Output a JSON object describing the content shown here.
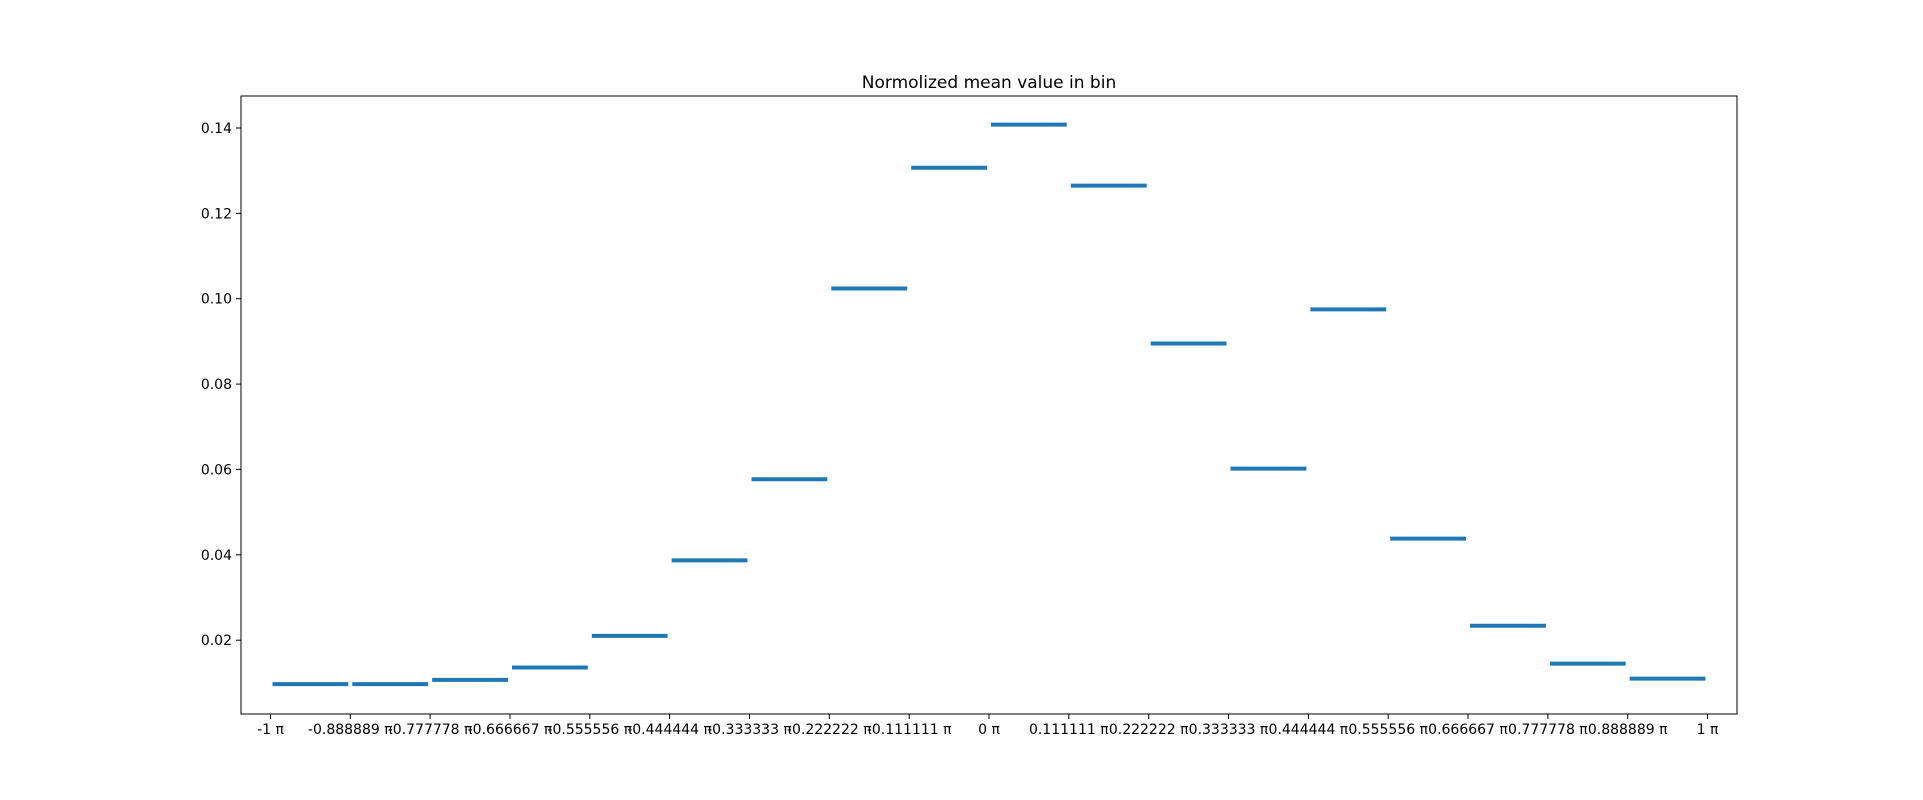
{
  "chart_data": {
    "type": "bar",
    "title": "Normolized mean value in bin",
    "xlabel": "",
    "ylabel": "",
    "x_tick_labels": [
      "-1 π",
      "-0.888889 π",
      "-0.777778 π",
      "-0.666667 π",
      "-0.555556 π",
      "-0.444444 π",
      "-0.333333 π",
      "-0.222222 π",
      "-0.111111 π",
      "0 π",
      "0.111111 π",
      "0.222222 π",
      "0.333333 π",
      "0.444444 π",
      "0.555556 π",
      "0.666667 π",
      "0.777778 π",
      "0.888889 π",
      "1 π"
    ],
    "x_tick_values": [
      -1,
      -0.888889,
      -0.777778,
      -0.666667,
      -0.555556,
      -0.444444,
      -0.333333,
      -0.222222,
      -0.111111,
      0,
      0.111111,
      0.222222,
      0.333333,
      0.444444,
      0.555556,
      0.666667,
      0.777778,
      0.888889,
      1
    ],
    "y_ticks": [
      "0.02",
      "0.04",
      "0.06",
      "0.08",
      "0.10",
      "0.12",
      "0.14"
    ],
    "y_tick_values": [
      0.02,
      0.04,
      0.06,
      0.08,
      0.1,
      0.12,
      0.14
    ],
    "xlim": [
      -1.041,
      1.041
    ],
    "ylim": [
      0.0027,
      0.1475
    ],
    "segments": [
      {
        "x_start": -1.0,
        "x_end": -0.888889,
        "value": 0.0097
      },
      {
        "x_start": -0.888889,
        "x_end": -0.777778,
        "value": 0.0097
      },
      {
        "x_start": -0.777778,
        "x_end": -0.666667,
        "value": 0.0107
      },
      {
        "x_start": -0.666667,
        "x_end": -0.555556,
        "value": 0.0136
      },
      {
        "x_start": -0.555556,
        "x_end": -0.444444,
        "value": 0.021
      },
      {
        "x_start": -0.444444,
        "x_end": -0.333333,
        "value": 0.0387
      },
      {
        "x_start": -0.333333,
        "x_end": -0.222222,
        "value": 0.0577
      },
      {
        "x_start": -0.222222,
        "x_end": -0.111111,
        "value": 0.1024
      },
      {
        "x_start": -0.111111,
        "x_end": 0.0,
        "value": 0.1307
      },
      {
        "x_start": 0.0,
        "x_end": 0.111111,
        "value": 0.1408
      },
      {
        "x_start": 0.111111,
        "x_end": 0.222222,
        "value": 0.1265
      },
      {
        "x_start": 0.222222,
        "x_end": 0.333333,
        "value": 0.0895
      },
      {
        "x_start": 0.333333,
        "x_end": 0.444444,
        "value": 0.0602
      },
      {
        "x_start": 0.444444,
        "x_end": 0.555556,
        "value": 0.0975
      },
      {
        "x_start": 0.555556,
        "x_end": 0.666667,
        "value": 0.0438
      },
      {
        "x_start": 0.666667,
        "x_end": 0.777778,
        "value": 0.0234
      },
      {
        "x_start": 0.777778,
        "x_end": 0.888889,
        "value": 0.0145
      },
      {
        "x_start": 0.888889,
        "x_end": 1.0,
        "value": 0.011
      }
    ],
    "grid": false,
    "legend": "none",
    "colors": {
      "segment": "#1f77b4",
      "axes": "#000000",
      "background": "#ffffff"
    }
  }
}
